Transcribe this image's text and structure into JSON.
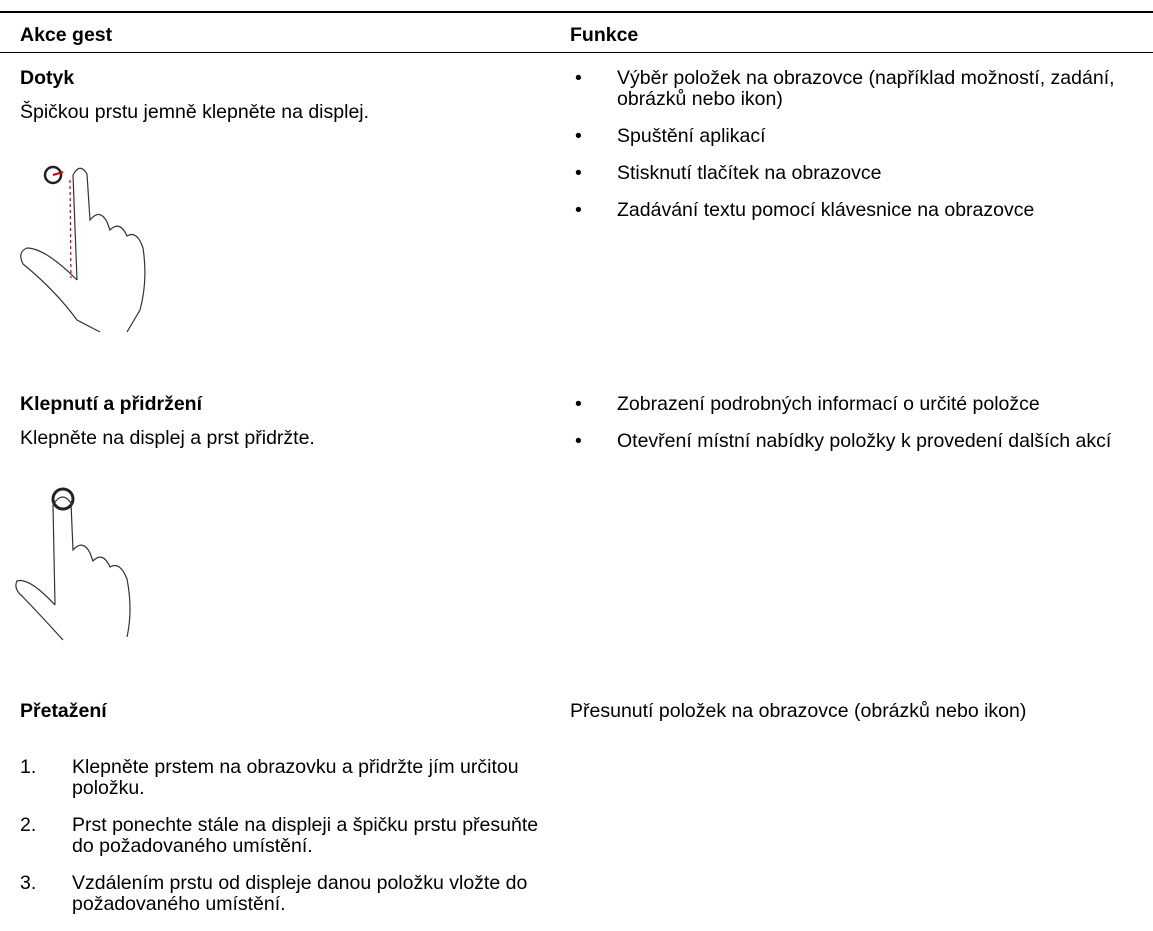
{
  "header": {
    "columns": [
      "Akce gest",
      "Funkce"
    ]
  },
  "rows": [
    {
      "gesture": "Dotyk",
      "description": "Špičkou prstu jemně klepněte na displej.",
      "functions": [
        "Výběr položek na obrazovce (například možností, zadání, obrázků nebo ikon)",
        "Spuštění aplikací",
        "Stisknutí tlačítek na obrazovce",
        "Zadávání textu pomocí klávesnice na obrazovce"
      ]
    },
    {
      "gesture": "Klepnutí a přidržení",
      "description": "Klepněte na displej a prst přidržte.",
      "functions": [
        "Zobrazení podrobných informací o určité položce",
        "Otevření místní nabídky položky k provedení dalších akcí"
      ]
    },
    {
      "gesture": "Přetažení",
      "function": "Přesunutí položek na obrazovce (obrázků nebo ikon)",
      "steps": [
        {
          "number": "1.",
          "text": "Klepněte prstem na obrazovku a přidržte jím určitou položku."
        },
        {
          "number": "2.",
          "text": "Prst ponechte stále na displeji a špičku prstu přesuňte do požadovaného umístění."
        },
        {
          "number": "3.",
          "text": "Vzdálením prstu od displeje danou položku vložte do požadovaného umístění."
        }
      ]
    }
  ]
}
